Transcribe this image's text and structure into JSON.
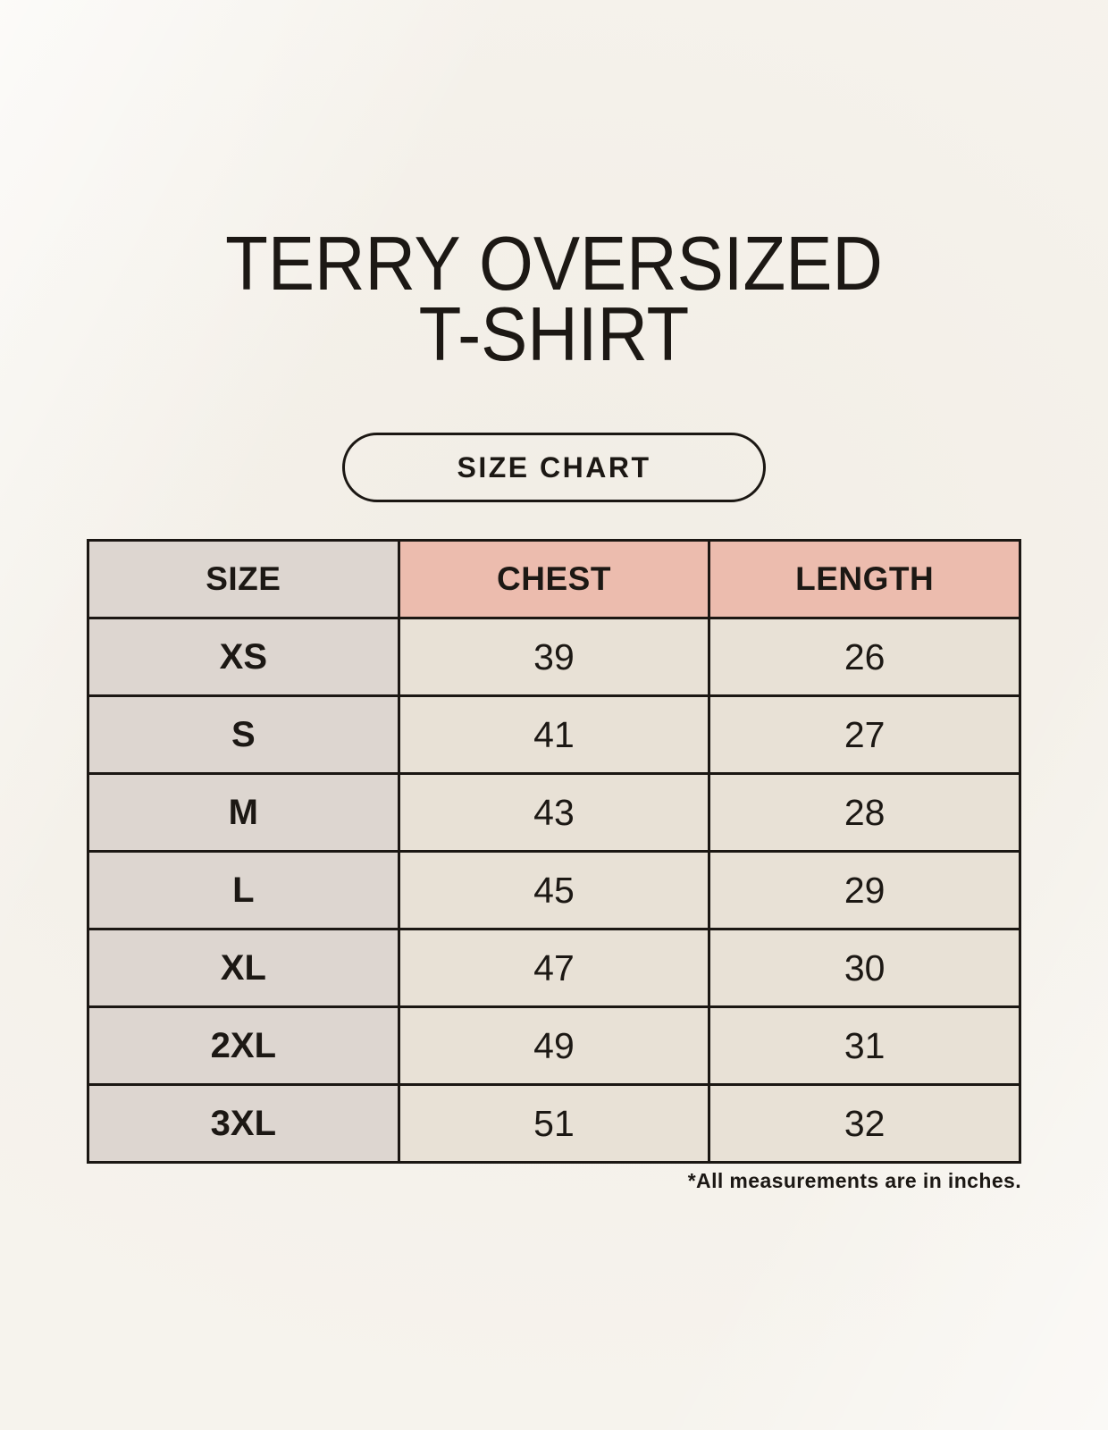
{
  "header": {
    "title_line1": "TERRY OVERSIZED",
    "title_line2": "T-SHIRT",
    "size_chart_button": "SIZE CHART"
  },
  "chart_data": {
    "type": "table",
    "title": "TERRY OVERSIZED T-SHIRT",
    "columns": [
      "SIZE",
      "CHEST",
      "LENGTH"
    ],
    "rows": [
      [
        "XS",
        "39",
        "26"
      ],
      [
        "S",
        "41",
        "27"
      ],
      [
        "M",
        "43",
        "28"
      ],
      [
        "L",
        "45",
        "29"
      ],
      [
        "XL",
        "47",
        "30"
      ],
      [
        "2XL",
        "49",
        "31"
      ],
      [
        "3XL",
        "51",
        "32"
      ]
    ],
    "units_note": "*All measurements are in inches."
  },
  "colors": {
    "background": "#f6f3ed",
    "header_pink": "#ecbcae",
    "size_column_gray": "#ddd6d0",
    "cell_cream": "#e8e1d6",
    "border_black": "#1b1713",
    "text_black": "#1c1814"
  }
}
